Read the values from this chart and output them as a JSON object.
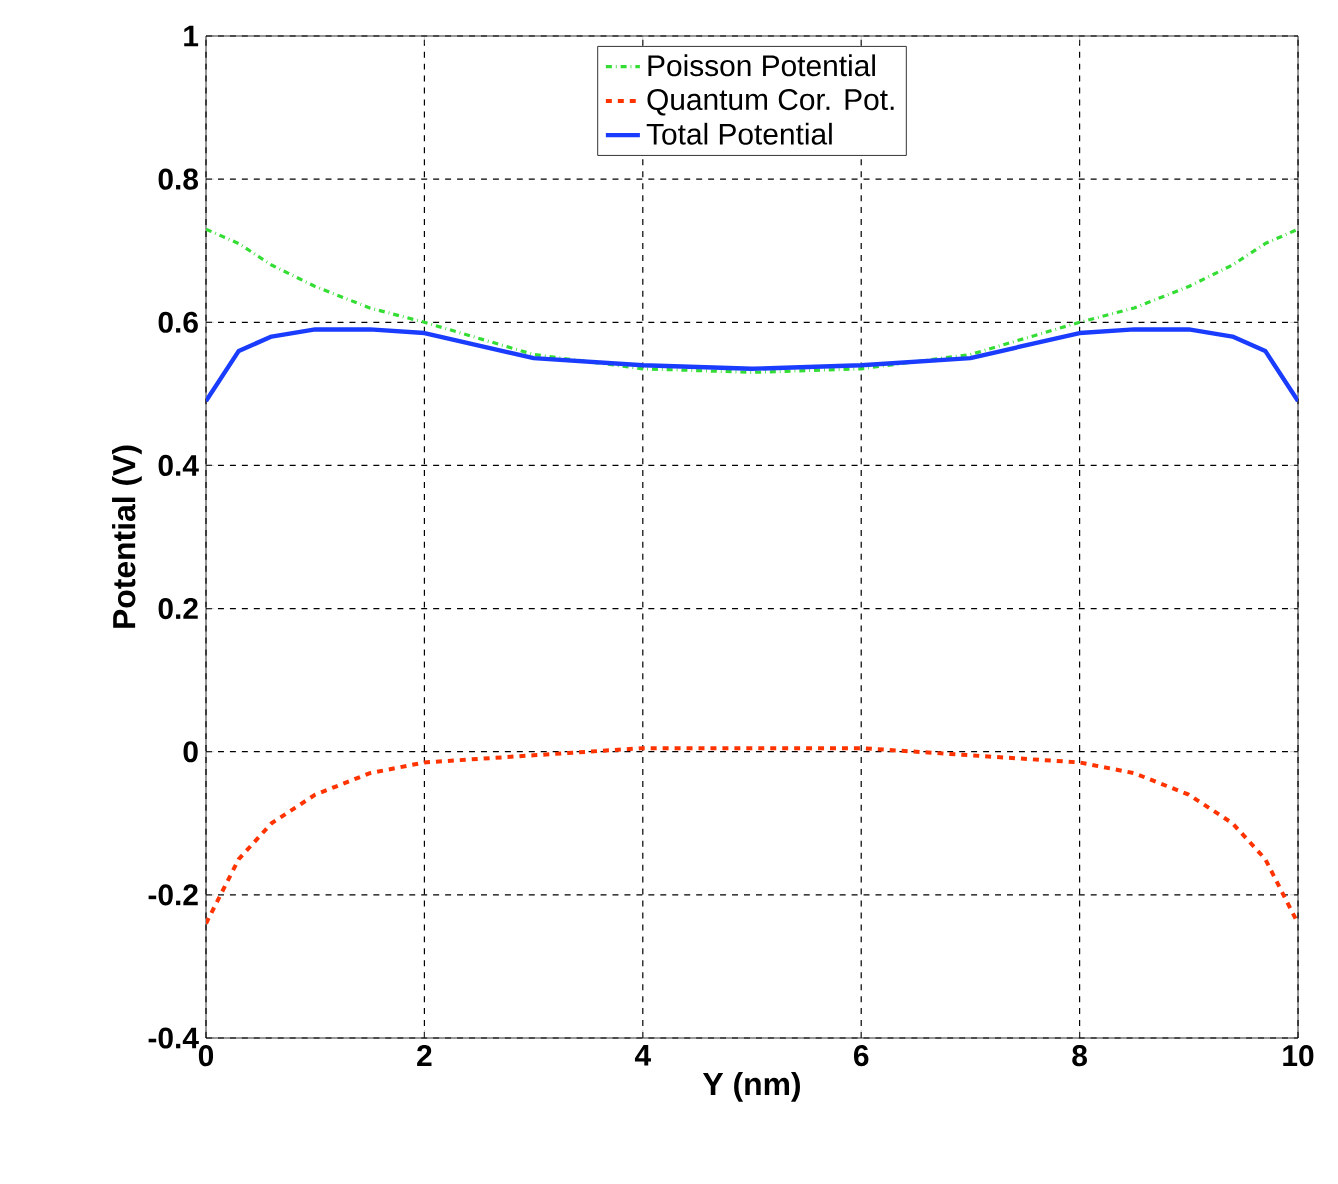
{
  "chart_data": {
    "type": "line",
    "xlabel": "Y (nm)",
    "ylabel": "Potential (V)",
    "x": [
      0,
      0.3,
      0.6,
      1,
      1.5,
      2,
      3,
      4,
      5,
      6,
      7,
      8,
      8.5,
      9,
      9.4,
      9.7,
      10
    ],
    "series": [
      {
        "name": "Poisson Potential",
        "color": "#33dd33",
        "line_style": "dashdot",
        "values": [
          0.73,
          0.71,
          0.68,
          0.65,
          0.62,
          0.6,
          0.555,
          0.535,
          0.53,
          0.535,
          0.555,
          0.6,
          0.62,
          0.65,
          0.68,
          0.71,
          0.73
        ]
      },
      {
        "name": "Quantum Cor. Pot.",
        "color": "#ff3300",
        "line_style": "dashed",
        "values": [
          -0.24,
          -0.15,
          -0.1,
          -0.06,
          -0.03,
          -0.015,
          -0.005,
          0.005,
          0.005,
          0.005,
          -0.005,
          -0.015,
          -0.03,
          -0.06,
          -0.1,
          -0.15,
          -0.24
        ]
      },
      {
        "name": "Total Potential",
        "color": "#1a3cff",
        "line_style": "solid",
        "values": [
          0.49,
          0.56,
          0.58,
          0.59,
          0.59,
          0.585,
          0.55,
          0.54,
          0.535,
          0.54,
          0.55,
          0.585,
          0.59,
          0.59,
          0.58,
          0.56,
          0.49
        ]
      }
    ],
    "xlim": [
      0,
      10
    ],
    "xticks": [
      0,
      2,
      4,
      6,
      8,
      10
    ],
    "ylim": [
      -0.4,
      1
    ],
    "yticks": [
      -0.4,
      -0.2,
      0,
      0.2,
      0.4,
      0.6,
      0.8,
      1
    ],
    "grid": true,
    "legend": "top"
  }
}
